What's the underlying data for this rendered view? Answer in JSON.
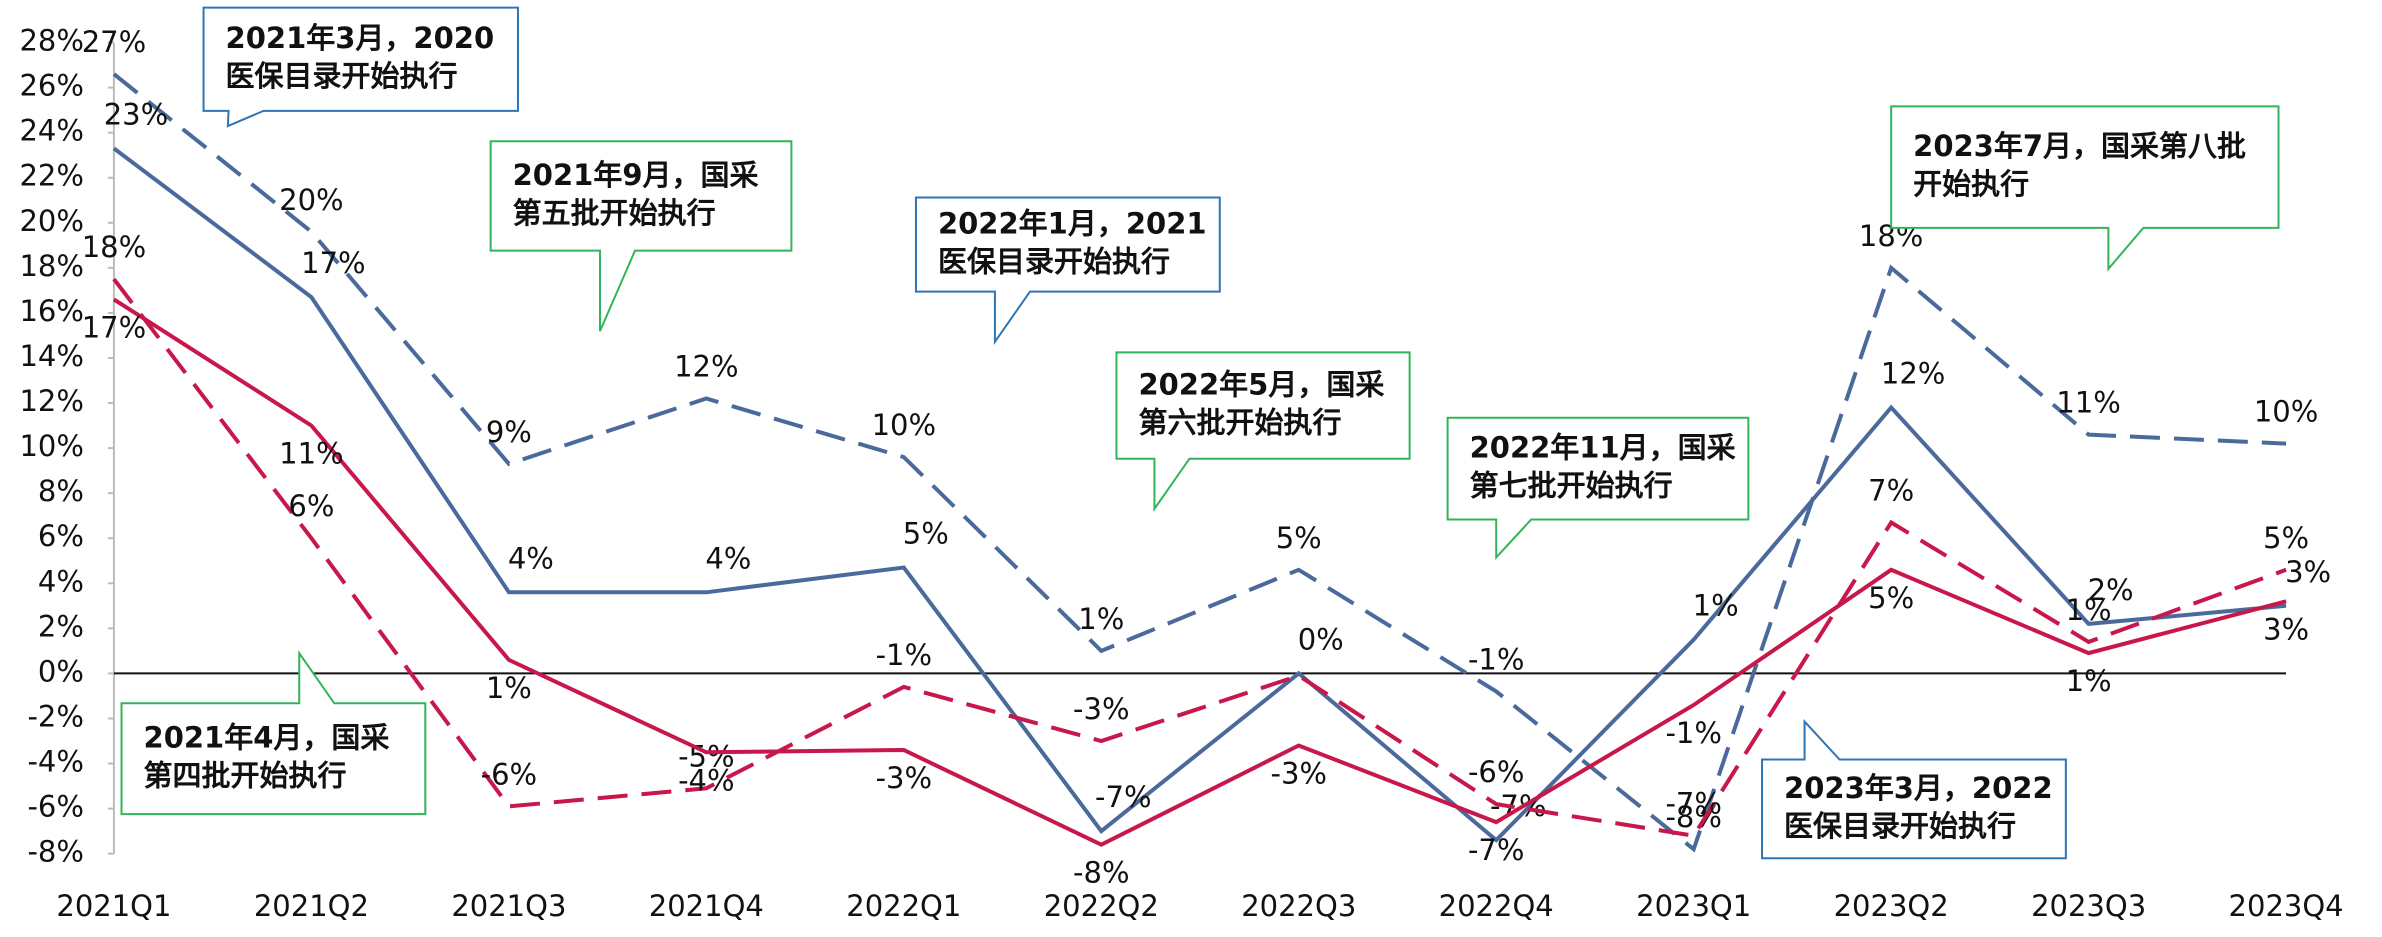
{
  "chart_data": {
    "type": "line",
    "categories": [
      "2021Q1",
      "2021Q2",
      "2021Q3",
      "2021Q4",
      "2022Q1",
      "2022Q2",
      "2022Q3",
      "2022Q4",
      "2023Q1",
      "2023Q2",
      "2023Q3",
      "2023Q4"
    ],
    "ylim": [
      -8,
      28
    ],
    "yticks": [
      {
        "value": -8,
        "label": "-8%"
      },
      {
        "value": -6,
        "label": "-6%"
      },
      {
        "value": -4,
        "label": "-4%"
      },
      {
        "value": -2,
        "label": "-2%"
      },
      {
        "value": 0,
        "label": "0%"
      },
      {
        "value": 2,
        "label": "2%"
      },
      {
        "value": 4,
        "label": "4%"
      },
      {
        "value": 6,
        "label": "6%"
      },
      {
        "value": 8,
        "label": "8%"
      },
      {
        "value": 10,
        "label": "10%"
      },
      {
        "value": 12,
        "label": "12%"
      },
      {
        "value": 14,
        "label": "14%"
      },
      {
        "value": 16,
        "label": "16%"
      },
      {
        "value": 18,
        "label": "18%"
      },
      {
        "value": 20,
        "label": "20%"
      },
      {
        "value": 22,
        "label": "22%"
      },
      {
        "value": 24,
        "label": "24%"
      },
      {
        "value": 26,
        "label": "26%"
      },
      {
        "value": 28,
        "label": "28%"
      }
    ],
    "series": [
      {
        "color": "#4a6a9c",
        "dash": true,
        "values": [
          26.6,
          19.6,
          9.3,
          12.2,
          9.6,
          1.0,
          4.6,
          -0.8,
          -7.8,
          18.0,
          10.6,
          10.2
        ],
        "value_labels": [
          "27%",
          "20%",
          "9%",
          "12%",
          "10%",
          "1%",
          "5%",
          "-1%",
          "-8%",
          "18%",
          "11%",
          "10%"
        ]
      },
      {
        "color": "#4a6a9c",
        "dash": false,
        "values": [
          23.3,
          16.7,
          3.6,
          3.6,
          4.7,
          -7.0,
          0.0,
          -7.4,
          1.5,
          11.8,
          2.2,
          3.0
        ],
        "value_labels": [
          "23%",
          "17%",
          "4%",
          "4%",
          "5%",
          "-7%",
          "0%",
          "-7%",
          "1%",
          "12%",
          "2%",
          "3%"
        ]
      },
      {
        "color": "#c8174a",
        "dash": true,
        "values": [
          17.5,
          6.0,
          -5.9,
          -5.1,
          -0.6,
          -3.0,
          -0.1,
          -5.8,
          -7.2,
          6.7,
          1.4,
          4.6
        ],
        "value_labels": [
          "18%",
          "6%",
          "-6%",
          "-5%",
          "-1%",
          "-3%",
          null,
          "-6%",
          "-7%",
          "7%",
          "1%",
          "5%"
        ]
      },
      {
        "color": "#c8174a",
        "dash": false,
        "values": [
          16.6,
          11.0,
          0.6,
          -3.5,
          -3.4,
          -7.6,
          -3.2,
          -6.6,
          -1.4,
          4.6,
          0.9,
          3.2
        ],
        "value_labels": [
          "17%",
          "11%",
          "1%",
          "-4%",
          "-3%",
          "-8%",
          "-3%",
          "-7%",
          "-1%",
          "5%",
          "1%",
          "3%"
        ]
      }
    ],
    "annotations": [
      {
        "lines": [
          "2021年3月，2020",
          "医保目录开始执行"
        ]
      },
      {
        "lines": [
          "2021年9月，国采",
          "第五批开始执行"
        ]
      },
      {
        "lines": [
          "2022年1月，2021",
          "医保目录开始执行"
        ]
      },
      {
        "lines": [
          "2022年5月，国采",
          "第六批开始执行"
        ]
      },
      {
        "lines": [
          "2022年11月，国采",
          "第七批开始执行"
        ]
      },
      {
        "lines": [
          "2023年7月，国采第八批",
          "开始执行"
        ]
      },
      {
        "lines": [
          "2021年4月，国采",
          "第四批开始执行"
        ]
      },
      {
        "lines": [
          "2023年3月，2022",
          "医保目录开始执行"
        ]
      }
    ]
  }
}
